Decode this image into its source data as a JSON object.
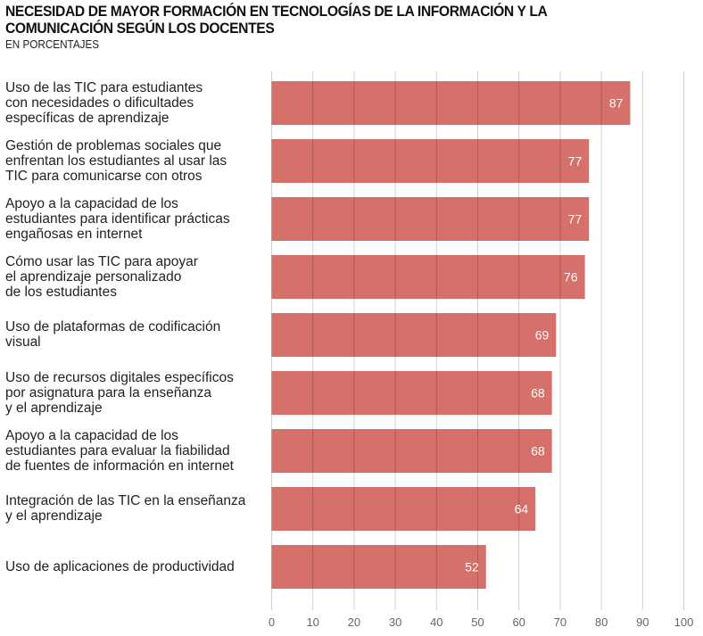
{
  "chart_data": {
    "type": "bar",
    "orientation": "horizontal",
    "title": "NECESIDAD DE MAYOR FORMACIÓN EN TECNOLOGÍAS DE LA INFORMACIÓN Y LA COMUNICACIÓN SEGÚN LOS DOCENTES",
    "subtitle": "EN PORCENTAJES",
    "categories": [
      "Uso de las TIC para estudiantes con necesidades o dificultades específicas de aprendizaje",
      "Gestión de problemas sociales que enfrentan los estudiantes al usar las TIC para comunicarse con otros",
      "Apoyo a la capacidad de los estudiantes para identificar prácticas engañosas en internet",
      "Cómo usar las TIC para apoyar el aprendizaje personalizado de los estudiantes",
      "Uso de plataformas de codificación visual",
      "Uso de recursos digitales específicos por asignatura para la enseñanza y el aprendizaje",
      "Apoyo a la capacidad de los estudiantes para evaluar la fiabilidad de fuentes de información en internet",
      "Integración de las TIC en la enseñanza y el aprendizaje",
      "Uso de aplicaciones de productividad"
    ],
    "category_lines": [
      [
        "Uso de las TIC para estudiantes",
        "con necesidades o dificultades",
        "específicas de aprendizaje"
      ],
      [
        "Gestión de problemas sociales que",
        "enfrentan los estudiantes al usar las",
        "TIC para comunicarse con otros"
      ],
      [
        "Apoyo a la capacidad de los",
        "estudiantes para identificar prácticas",
        "engañosas en internet"
      ],
      [
        "Cómo usar las TIC para apoyar",
        "el aprendizaje personalizado",
        "de los estudiantes"
      ],
      [
        "Uso de plataformas de codificación",
        "visual"
      ],
      [
        "Uso de recursos digitales específicos",
        "por asignatura para la enseñanza",
        "y el aprendizaje"
      ],
      [
        "Apoyo a la capacidad de los",
        "estudiantes para evaluar la fiabilidad",
        "de fuentes de información en internet"
      ],
      [
        "Integración de las TIC en la enseñanza",
        "y el aprendizaje"
      ],
      [
        "Uso de aplicaciones de productividad"
      ]
    ],
    "values": [
      87,
      77,
      77,
      76,
      69,
      68,
      68,
      64,
      52
    ],
    "xlim": [
      0,
      100
    ],
    "xticks": [
      0,
      10,
      20,
      30,
      40,
      50,
      60,
      70,
      80,
      90,
      100
    ],
    "grid": true,
    "bar_color": "#d6706a",
    "data_label_color": "#ffffff"
  }
}
